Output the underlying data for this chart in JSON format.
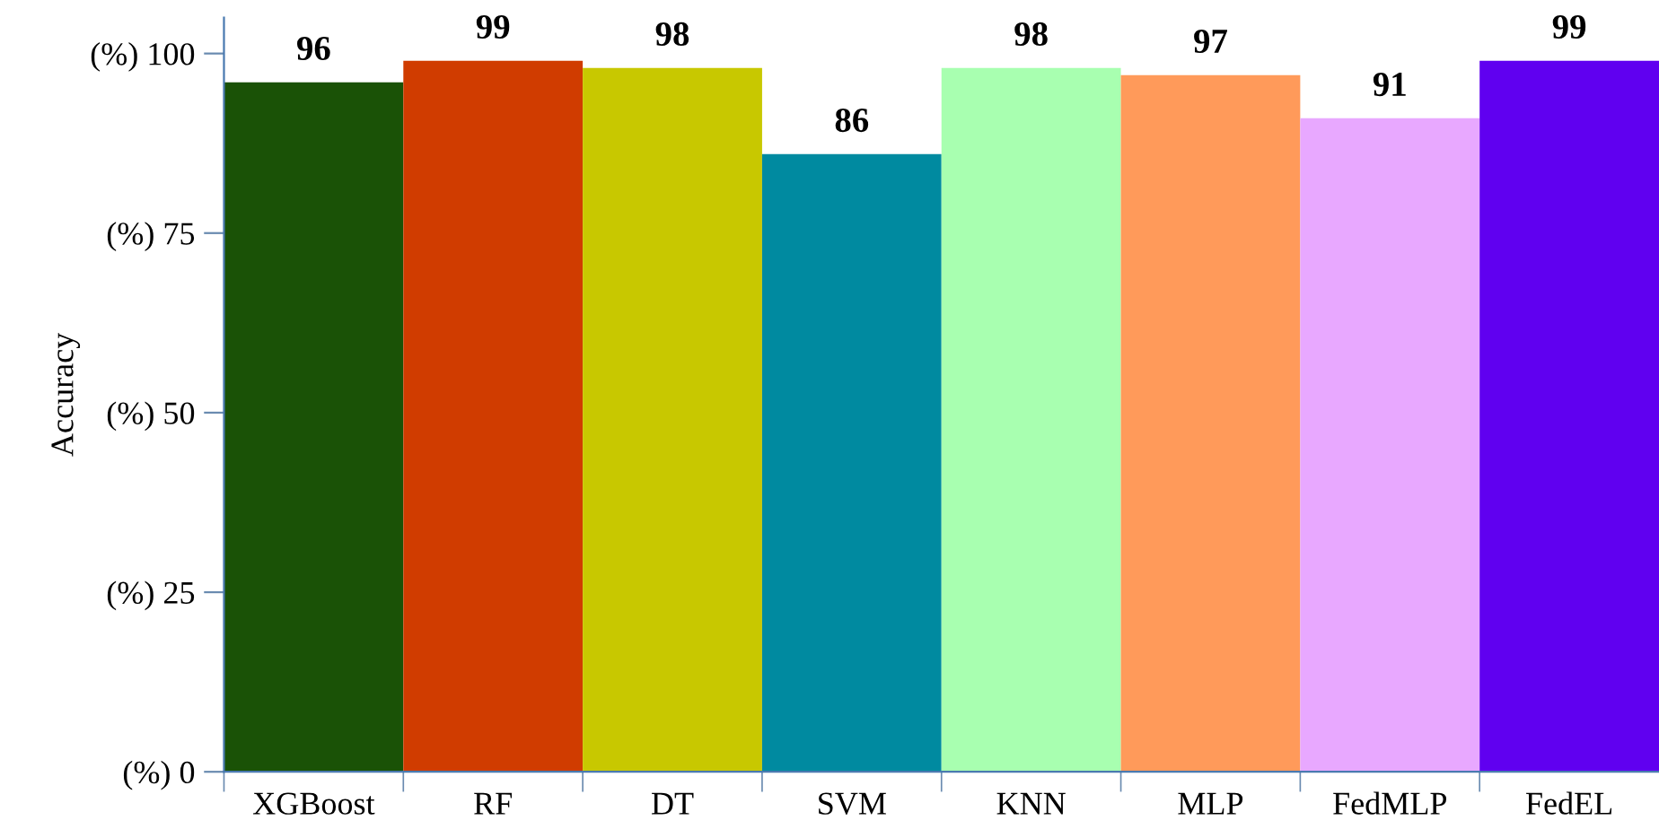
{
  "chart_data": {
    "type": "bar",
    "ylabel": "Accuracy",
    "categories": [
      "XGBoost",
      "RF",
      "DT",
      "SVM",
      "KNN",
      "MLP",
      "FedMLP",
      "FedEL"
    ],
    "values": [
      96,
      99,
      98,
      86,
      98,
      97,
      91,
      99
    ],
    "colors": [
      "#1a5206",
      "#d03c00",
      "#c8c800",
      "#008aa0",
      "#a8ffb0",
      "#ff9a5a",
      "#e8a8ff",
      "#6000f0"
    ],
    "ylim": [
      0,
      105
    ],
    "yticks": [
      {
        "value": 0,
        "label": "(%) 0"
      },
      {
        "value": 25,
        "label": "(%) 25"
      },
      {
        "value": 50,
        "label": "(%) 50"
      },
      {
        "value": 75,
        "label": "(%) 75"
      },
      {
        "value": 100,
        "label": "(%) 100"
      }
    ],
    "data_labels": true,
    "grid": false,
    "legend": false
  }
}
